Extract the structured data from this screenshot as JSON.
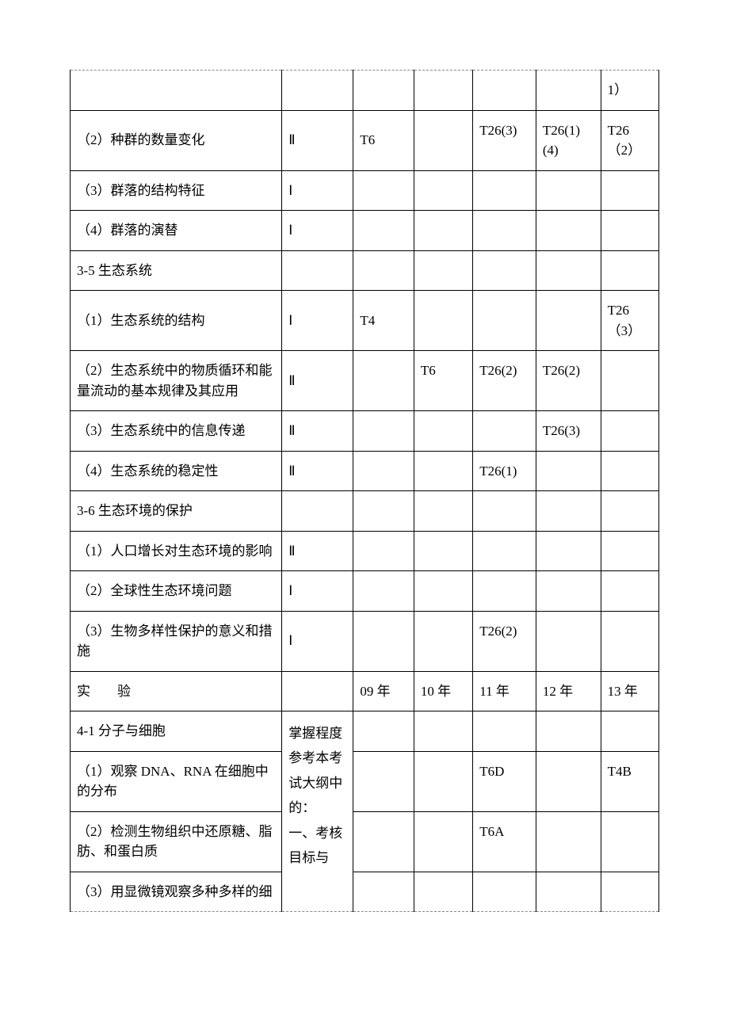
{
  "rows": {
    "r0": {
      "c1": "",
      "c2": "",
      "c3": "",
      "c4": "",
      "c5": "",
      "c6": "",
      "c7": "1）"
    },
    "r1": {
      "c1": "（2）种群的数量变化",
      "c2": "Ⅱ",
      "c3": "T6",
      "c4": "",
      "c5": "T26(3)",
      "c6": "T26(1)(4)",
      "c7": "T26（2）"
    },
    "r2": {
      "c1": "（3）群落的结构特征",
      "c2": "Ⅰ",
      "c3": "",
      "c4": "",
      "c5": "",
      "c6": "",
      "c7": ""
    },
    "r3": {
      "c1": "（4）群落的演替",
      "c2": "Ⅰ",
      "c3": "",
      "c4": "",
      "c5": "",
      "c6": "",
      "c7": ""
    },
    "r4": {
      "c1": "3-5 生态系统",
      "c2": "",
      "c3": "",
      "c4": "",
      "c5": "",
      "c6": "",
      "c7": ""
    },
    "r5": {
      "c1": "（1）生态系统的结构",
      "c2": "Ⅰ",
      "c3": "T4",
      "c4": "",
      "c5": "",
      "c6": "",
      "c7": "T26（3）"
    },
    "r6": {
      "c1": "（2）生态系统中的物质循环和能量流动的基本规律及其应用",
      "c2": "Ⅱ",
      "c3": "",
      "c4": "T6",
      "c5": "T26(2)",
      "c6": "T26(2)",
      "c7": ""
    },
    "r7": {
      "c1": "（3）生态系统中的信息传递",
      "c2": "Ⅱ",
      "c3": "",
      "c4": "",
      "c5": "",
      "c6": "T26(3)",
      "c7": ""
    },
    "r8": {
      "c1": "（4）生态系统的稳定性",
      "c2": "Ⅱ",
      "c3": "",
      "c4": "",
      "c5": "T26(1)",
      "c6": "",
      "c7": ""
    },
    "r9": {
      "c1": "3-6 生态环境的保护",
      "c2": "",
      "c3": "",
      "c4": "",
      "c5": "",
      "c6": "",
      "c7": ""
    },
    "r10": {
      "c1": "（1）人口增长对生态环境的影响",
      "c2": "Ⅱ",
      "c3": "",
      "c4": "",
      "c5": "",
      "c6": "",
      "c7": ""
    },
    "r11": {
      "c1": "（2）全球性生态环境问题",
      "c2": "Ⅰ",
      "c3": "",
      "c4": "",
      "c5": "",
      "c6": "",
      "c7": ""
    },
    "r12": {
      "c1": "（3）生物多样性保护的意义和措施",
      "c2": "Ⅰ",
      "c3": "",
      "c4": "",
      "c5": "T26(2)",
      "c6": "",
      "c7": ""
    },
    "r13": {
      "c1": "实　　验",
      "c2": "",
      "c3": "09 年",
      "c4": "10 年",
      "c5": "11 年",
      "c6": "12 年",
      "c7": "13 年"
    },
    "r14": {
      "c1": "4-1 分子与细胞",
      "c3": "",
      "c4": "",
      "c5": "",
      "c6": "",
      "c7": ""
    },
    "mergedC2": "掌握程度参考本考试大纲中的：\n一、考核目标与",
    "r15": {
      "c1": "（1）观察 DNA、RNA 在细胞中的分布",
      "c3": "",
      "c4": "",
      "c5": "T6D",
      "c6": "",
      "c7": "T4B"
    },
    "r16": {
      "c1": "（2）检测生物组织中还原糖、脂肪、和蛋白质",
      "c3": "",
      "c4": "",
      "c5": "T6A",
      "c6": "",
      "c7": ""
    },
    "r17": {
      "c1": "（3）用显微镜观察多种多样的细",
      "c3": "",
      "c4": "",
      "c5": "",
      "c6": "",
      "c7": ""
    }
  }
}
